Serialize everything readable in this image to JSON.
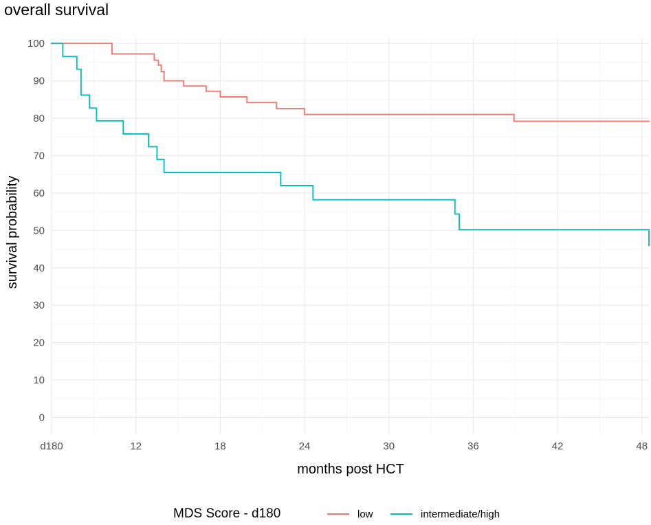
{
  "chart_data": {
    "type": "line",
    "title": "overall survival",
    "xlabel": "months post HCT",
    "ylabel": "survival probability",
    "xlim": [
      6,
      48.5
    ],
    "ylim": [
      -4.5,
      101.5
    ],
    "x_ticks": [
      {
        "value": 6,
        "label": "d180"
      },
      {
        "value": 12,
        "label": "12"
      },
      {
        "value": 18,
        "label": "18"
      },
      {
        "value": 24,
        "label": "24"
      },
      {
        "value": 30,
        "label": "30"
      },
      {
        "value": 36,
        "label": "36"
      },
      {
        "value": 42,
        "label": "42"
      },
      {
        "value": 48,
        "label": "48"
      }
    ],
    "y_ticks": [
      0,
      10,
      20,
      30,
      40,
      50,
      60,
      70,
      80,
      90,
      100
    ],
    "grid": true,
    "legend": {
      "title": "MDS Score - d180",
      "position": "bottom",
      "entries": [
        "low",
        "intermediate/high"
      ]
    },
    "series": [
      {
        "name": "low",
        "color": "#f8766d",
        "step": true,
        "x": [
          6,
          9.5,
          10.3,
          12.5,
          13.3,
          13.6,
          13.8,
          14.0,
          15.4,
          17.0,
          18.0,
          19.9,
          22.0,
          24.0,
          38.9,
          48.5
        ],
        "y": [
          100,
          100,
          97.2,
          97.2,
          95.5,
          94.2,
          92.5,
          90.0,
          88.6,
          87.2,
          85.7,
          84.2,
          82.6,
          81.0,
          79.2,
          79.2
        ]
      },
      {
        "name": "intermediate/high",
        "color": "#00bfc4",
        "step": true,
        "x": [
          6,
          6.6,
          6.8,
          7.8,
          8.1,
          8.7,
          9.2,
          11.1,
          12.9,
          13.5,
          14.0,
          22.3,
          24.6,
          34.7,
          35.0,
          48.5
        ],
        "y": [
          100,
          100,
          96.5,
          93.1,
          86.2,
          82.7,
          79.3,
          75.8,
          72.4,
          69.0,
          65.5,
          62.0,
          58.2,
          54.4,
          50.2,
          46.0
        ]
      }
    ]
  }
}
